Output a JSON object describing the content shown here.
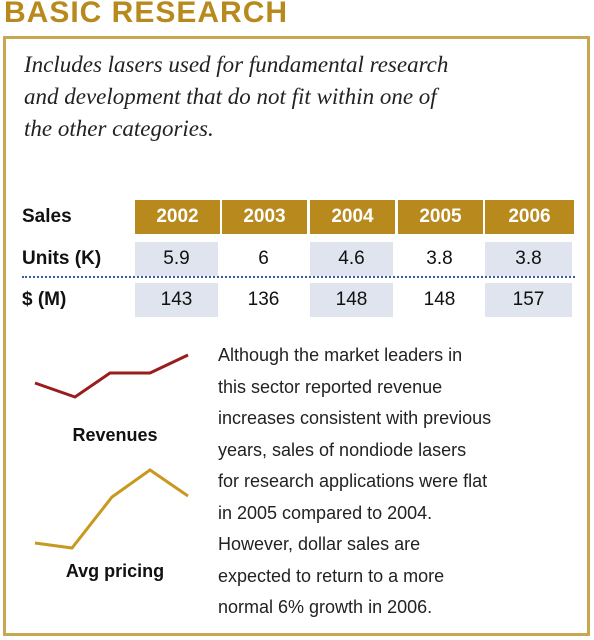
{
  "header": {
    "title": "BASIC RESEARCH"
  },
  "description": [
    "Includes lasers used for fundamental research",
    "and development that do not fit within one of",
    "the other categories."
  ],
  "table": {
    "header": [
      "Sales",
      2002,
      2003,
      2004,
      2005,
      2006
    ],
    "rows": [
      [
        "Units (K)",
        5.9,
        6,
        4.6,
        3.8,
        3.8
      ],
      [
        "$ (M)",
        143,
        136,
        148,
        148,
        157
      ]
    ]
  },
  "sparklines": [
    {
      "label": "Revenues"
    },
    {
      "label": "Avg pricing"
    }
  ],
  "body": [
    "Although the market leaders in",
    "this sector reported revenue",
    "increases consistent with previous",
    "years, sales of nondiode lasers",
    "for research applications were flat",
    "in 2005 compared to 2004.",
    "However, dollar sales are",
    "expected to return to a more",
    "normal 6% growth in 2006."
  ]
}
